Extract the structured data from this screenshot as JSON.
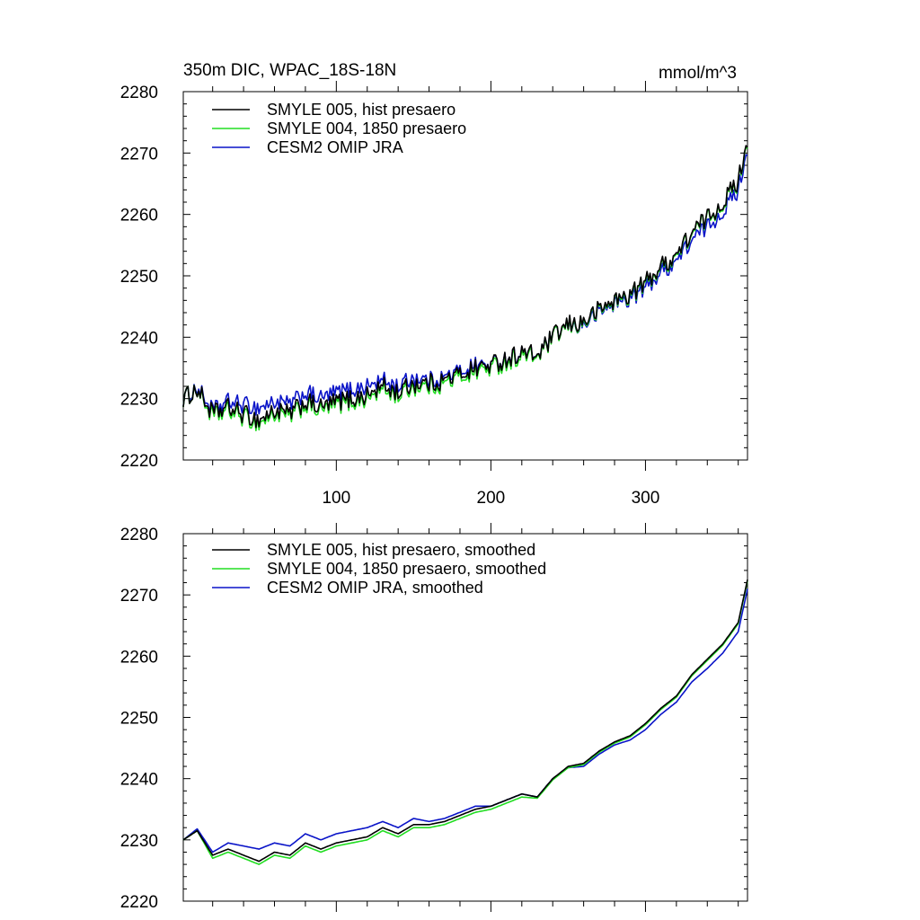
{
  "header": {
    "left": "350m DIC, WPAC_18S-18N",
    "right": "mmol/m^3"
  },
  "colors": {
    "smyle005": "#000000",
    "smyle004": "#22dd22",
    "cesm2": "#0a14c8"
  },
  "chart_data": [
    {
      "type": "line",
      "title": "350m DIC, WPAC_18S-18N",
      "units": "mmol/m^3",
      "xlabel": "",
      "ylabel": "",
      "xlim": [
        1,
        366
      ],
      "ylim": [
        2220,
        2280
      ],
      "xticks": [
        100,
        200,
        300
      ],
      "xtick_labels": [
        "100",
        "200",
        "300"
      ],
      "yticks": [
        2220,
        2230,
        2240,
        2250,
        2260,
        2270,
        2280
      ],
      "ytick_labels": [
        "2220",
        "2230",
        "2240",
        "2250",
        "2260",
        "2270",
        "2280"
      ],
      "legend": "top-left",
      "smoothed": false,
      "x_anchors": [
        1,
        10,
        20,
        30,
        40,
        50,
        60,
        70,
        80,
        90,
        100,
        110,
        120,
        130,
        140,
        150,
        160,
        170,
        180,
        190,
        200,
        210,
        220,
        230,
        240,
        250,
        260,
        270,
        280,
        290,
        300,
        310,
        320,
        330,
        340,
        350,
        360,
        366
      ],
      "series": [
        {
          "name": "SMYLE 005, hist presaero",
          "color_key": "smyle005",
          "values": [
            2230.0,
            2231.5,
            2227.5,
            2228.5,
            2227.5,
            2226.5,
            2228.0,
            2227.5,
            2229.5,
            2228.5,
            2229.5,
            2230.0,
            2230.5,
            2232.0,
            2231.0,
            2232.5,
            2232.5,
            2233.0,
            2234.0,
            2235.0,
            2235.5,
            2236.5,
            2237.5,
            2237.0,
            2240.0,
            2242.0,
            2242.5,
            2244.5,
            2246.0,
            2247.0,
            2249.0,
            2251.5,
            2253.5,
            2257.0,
            2259.5,
            2262.0,
            2265.5,
            2272.5
          ]
        },
        {
          "name": "SMYLE 004, 1850 presaero",
          "color_key": "smyle004",
          "values": [
            2230.0,
            2231.5,
            2227.0,
            2228.0,
            2227.0,
            2226.0,
            2227.5,
            2227.0,
            2229.0,
            2228.0,
            2229.0,
            2229.5,
            2230.0,
            2231.5,
            2230.5,
            2232.0,
            2232.0,
            2232.5,
            2233.5,
            2234.5,
            2235.0,
            2236.0,
            2237.0,
            2236.8,
            2239.8,
            2241.8,
            2242.3,
            2244.3,
            2245.8,
            2246.8,
            2248.8,
            2251.3,
            2253.3,
            2256.8,
            2259.3,
            2261.8,
            2265.3,
            2272.3
          ]
        },
        {
          "name": "CESM2 OMIP JRA",
          "color_key": "cesm2",
          "values": [
            2230.0,
            2231.8,
            2228.0,
            2229.5,
            2229.0,
            2228.5,
            2229.5,
            2229.0,
            2231.0,
            2230.0,
            2231.0,
            2231.5,
            2232.0,
            2233.0,
            2232.0,
            2233.5,
            2233.0,
            2233.5,
            2234.5,
            2235.5,
            2235.5,
            2236.5,
            2237.5,
            2237.0,
            2240.0,
            2241.8,
            2242.0,
            2244.0,
            2245.5,
            2246.3,
            2248.0,
            2250.5,
            2252.5,
            2255.8,
            2258.0,
            2260.5,
            2264.0,
            2271.0
          ]
        }
      ]
    },
    {
      "type": "line",
      "title": "",
      "xlabel": "",
      "ylabel": "",
      "xlim": [
        1,
        366
      ],
      "ylim": [
        2220,
        2280
      ],
      "xticks": [
        100,
        200,
        300
      ],
      "xtick_labels": [],
      "yticks": [
        2220,
        2230,
        2240,
        2250,
        2260,
        2270,
        2280
      ],
      "ytick_labels": [
        "2220",
        "2230",
        "2240",
        "2250",
        "2260",
        "2270",
        "2280"
      ],
      "legend": "top-left",
      "smoothed": true,
      "x_anchors": [
        1,
        10,
        20,
        30,
        40,
        50,
        60,
        70,
        80,
        90,
        100,
        110,
        120,
        130,
        140,
        150,
        160,
        170,
        180,
        190,
        200,
        210,
        220,
        230,
        240,
        250,
        260,
        270,
        280,
        290,
        300,
        310,
        320,
        330,
        340,
        350,
        360,
        366
      ],
      "series": [
        {
          "name": "SMYLE 005, hist presaero, smoothed",
          "color_key": "smyle005",
          "values": [
            2230.0,
            2231.5,
            2227.5,
            2228.5,
            2227.5,
            2226.5,
            2228.0,
            2227.5,
            2229.5,
            2228.5,
            2229.5,
            2230.0,
            2230.5,
            2232.0,
            2231.0,
            2232.5,
            2232.5,
            2233.0,
            2234.0,
            2235.0,
            2235.5,
            2236.5,
            2237.5,
            2237.0,
            2240.0,
            2242.0,
            2242.5,
            2244.5,
            2246.0,
            2247.0,
            2249.0,
            2251.5,
            2253.5,
            2257.0,
            2259.5,
            2262.0,
            2265.5,
            2272.5
          ]
        },
        {
          "name": "SMYLE 004, 1850 presaero, smoothed",
          "color_key": "smyle004",
          "values": [
            2230.0,
            2231.5,
            2227.0,
            2228.0,
            2227.0,
            2226.0,
            2227.5,
            2227.0,
            2229.0,
            2228.0,
            2229.0,
            2229.5,
            2230.0,
            2231.5,
            2230.5,
            2232.0,
            2232.0,
            2232.5,
            2233.5,
            2234.5,
            2235.0,
            2236.0,
            2237.0,
            2236.8,
            2239.8,
            2241.8,
            2242.3,
            2244.3,
            2245.8,
            2246.8,
            2248.8,
            2251.3,
            2253.3,
            2256.8,
            2259.3,
            2261.8,
            2265.3,
            2272.3
          ]
        },
        {
          "name": "CESM2 OMIP JRA, smoothed",
          "color_key": "cesm2",
          "values": [
            2230.0,
            2231.8,
            2228.0,
            2229.5,
            2229.0,
            2228.5,
            2229.5,
            2229.0,
            2231.0,
            2230.0,
            2231.0,
            2231.5,
            2232.0,
            2233.0,
            2232.0,
            2233.5,
            2233.0,
            2233.5,
            2234.5,
            2235.5,
            2235.5,
            2236.5,
            2237.5,
            2237.0,
            2240.0,
            2241.8,
            2242.0,
            2244.0,
            2245.5,
            2246.3,
            2248.0,
            2250.5,
            2252.5,
            2255.8,
            2258.0,
            2260.5,
            2264.0,
            2271.0
          ]
        }
      ]
    }
  ]
}
